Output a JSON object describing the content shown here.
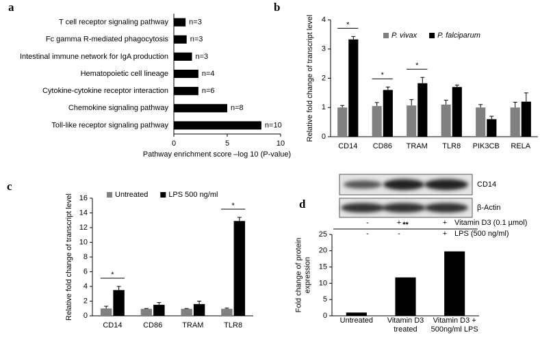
{
  "chart_data": [
    {
      "type": "barh",
      "panel": "a",
      "categories": [
        "T cell receptor signaling pathway",
        "Fc gamma R-mediated phagocytosis",
        "Intestinal immune network for IgA production",
        "Hematopoietic cell lineage",
        "Cytokine-cytokine receptor interaction",
        "Chemokine signaling pathway",
        "Toll-like receptor signaling pathway"
      ],
      "values": [
        1.1,
        1.2,
        1.7,
        2.3,
        2.3,
        5.0,
        8.2
      ],
      "annotations": [
        "n=3",
        "n=3",
        "n=3",
        "n=4",
        "n=6",
        "n=8",
        "n=10"
      ],
      "color": "#000000",
      "xlim": [
        0,
        10
      ],
      "xticks": [
        0,
        5,
        10
      ],
      "x_label": "Pathway enrichment score –log 10 (P-value)"
    },
    {
      "type": "bar",
      "panel": "b",
      "categories": [
        "CD14",
        "CD86",
        "TRAM",
        "TLR8",
        "PIK3CB",
        "RELA"
      ],
      "series": [
        {
          "name": "P. vivax",
          "color": "#808080",
          "values": [
            1.0,
            1.05,
            1.07,
            1.1,
            1.0,
            1.0
          ],
          "errors": [
            0.07,
            0.12,
            0.2,
            0.15,
            0.1,
            0.18
          ]
        },
        {
          "name": "P. falciparum",
          "color": "#000000",
          "values": [
            3.33,
            1.6,
            1.83,
            1.7,
            0.6,
            1.2
          ],
          "errors": [
            0.1,
            0.1,
            0.2,
            0.07,
            0.1,
            0.3
          ]
        }
      ],
      "significance": [
        "*",
        "*",
        "*",
        null,
        null,
        null
      ],
      "legend_style": "italic",
      "ylim": [
        0,
        4
      ],
      "yticks": [
        0,
        1,
        2,
        3,
        4
      ],
      "y_label": "Relative fold change of transcript level"
    },
    {
      "type": "bar",
      "panel": "c",
      "categories": [
        "CD14",
        "CD86",
        "TRAM",
        "TLR8"
      ],
      "series": [
        {
          "name": "Untreated",
          "color": "#808080",
          "values": [
            1.0,
            0.95,
            0.95,
            0.95
          ],
          "errors": [
            0.3,
            0.05,
            0.05,
            0.1
          ]
        },
        {
          "name": "LPS 500 ng/ml",
          "color": "#000000",
          "values": [
            3.5,
            1.5,
            1.6,
            12.9
          ],
          "errors": [
            0.5,
            0.3,
            0.4,
            0.5
          ]
        }
      ],
      "significance": [
        "*",
        null,
        null,
        "*"
      ],
      "legend_style": "normal",
      "ylim": [
        0,
        16
      ],
      "yticks": [
        0,
        2,
        4,
        6,
        8,
        10,
        12,
        14,
        16
      ],
      "y_label": "Relative fold change of transcript level"
    },
    {
      "type": "bar",
      "panel": "d",
      "categories": [
        "Untreated",
        "Vitamin D3 treated",
        "Vitamin D3 + 500ng/ml LPS"
      ],
      "values": [
        1,
        11.8,
        19.8
      ],
      "color": "#000000",
      "significance": "**",
      "ylim": [
        0,
        25
      ],
      "yticks": [
        0,
        5,
        10,
        15,
        20,
        25
      ],
      "y_label": "Fold change of protein expression",
      "blot": {
        "bands": [
          "CD14",
          "β-Actin"
        ],
        "treatments": [
          {
            "name": "Vitamin D3  (0.1 µmol)",
            "signs": [
              "-",
              "+",
              "+"
            ]
          },
          {
            "name": "LPS (500 ng/ml)",
            "signs": [
              "-",
              "-",
              "+"
            ]
          }
        ]
      }
    }
  ]
}
